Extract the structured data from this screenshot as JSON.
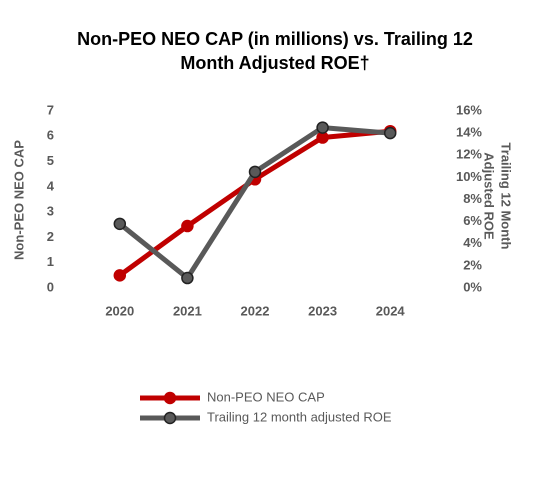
{
  "chart_data": {
    "type": "line",
    "title": [
      "Non-PEO NEO CAP (in millions) vs. Trailing 12",
      "Month Adjusted ROE†"
    ],
    "y_label": "Non-PEO NEO CAP",
    "y2_label": [
      "Trailing 12 Month",
      "Adjusted ROE"
    ],
    "categories": [
      "2020",
      "2021",
      "2022",
      "2023",
      "2024"
    ],
    "series": [
      {
        "name": "Non-PEO NEO CAP",
        "color": "#c00000",
        "values": [
          0.5,
          2.45,
          4.3,
          5.95,
          6.2
        ]
      },
      {
        "name": "Trailing 12 month adjusted ROE",
        "color": "#595959",
        "axis": "y2",
        "values": [
          5.8,
          0.9,
          10.5,
          14.5,
          14.0
        ]
      }
    ],
    "ylim": [
      0,
      7
    ],
    "yticks": [
      0,
      1,
      2,
      3,
      4,
      5,
      6,
      7
    ],
    "y2lim": [
      0,
      16
    ],
    "y2ticks": [
      {
        "value": 0,
        "label": "0%"
      },
      {
        "value": 2,
        "label": "2%"
      },
      {
        "value": 4,
        "label": "4%"
      },
      {
        "value": 6,
        "label": "6%"
      },
      {
        "value": 8,
        "label": "8%"
      },
      {
        "value": 10,
        "label": "10%"
      },
      {
        "value": 12,
        "label": "12%"
      },
      {
        "value": 14,
        "label": "14%"
      },
      {
        "value": 16,
        "label": "16%"
      }
    ],
    "grid": false,
    "legend": "bottom"
  }
}
